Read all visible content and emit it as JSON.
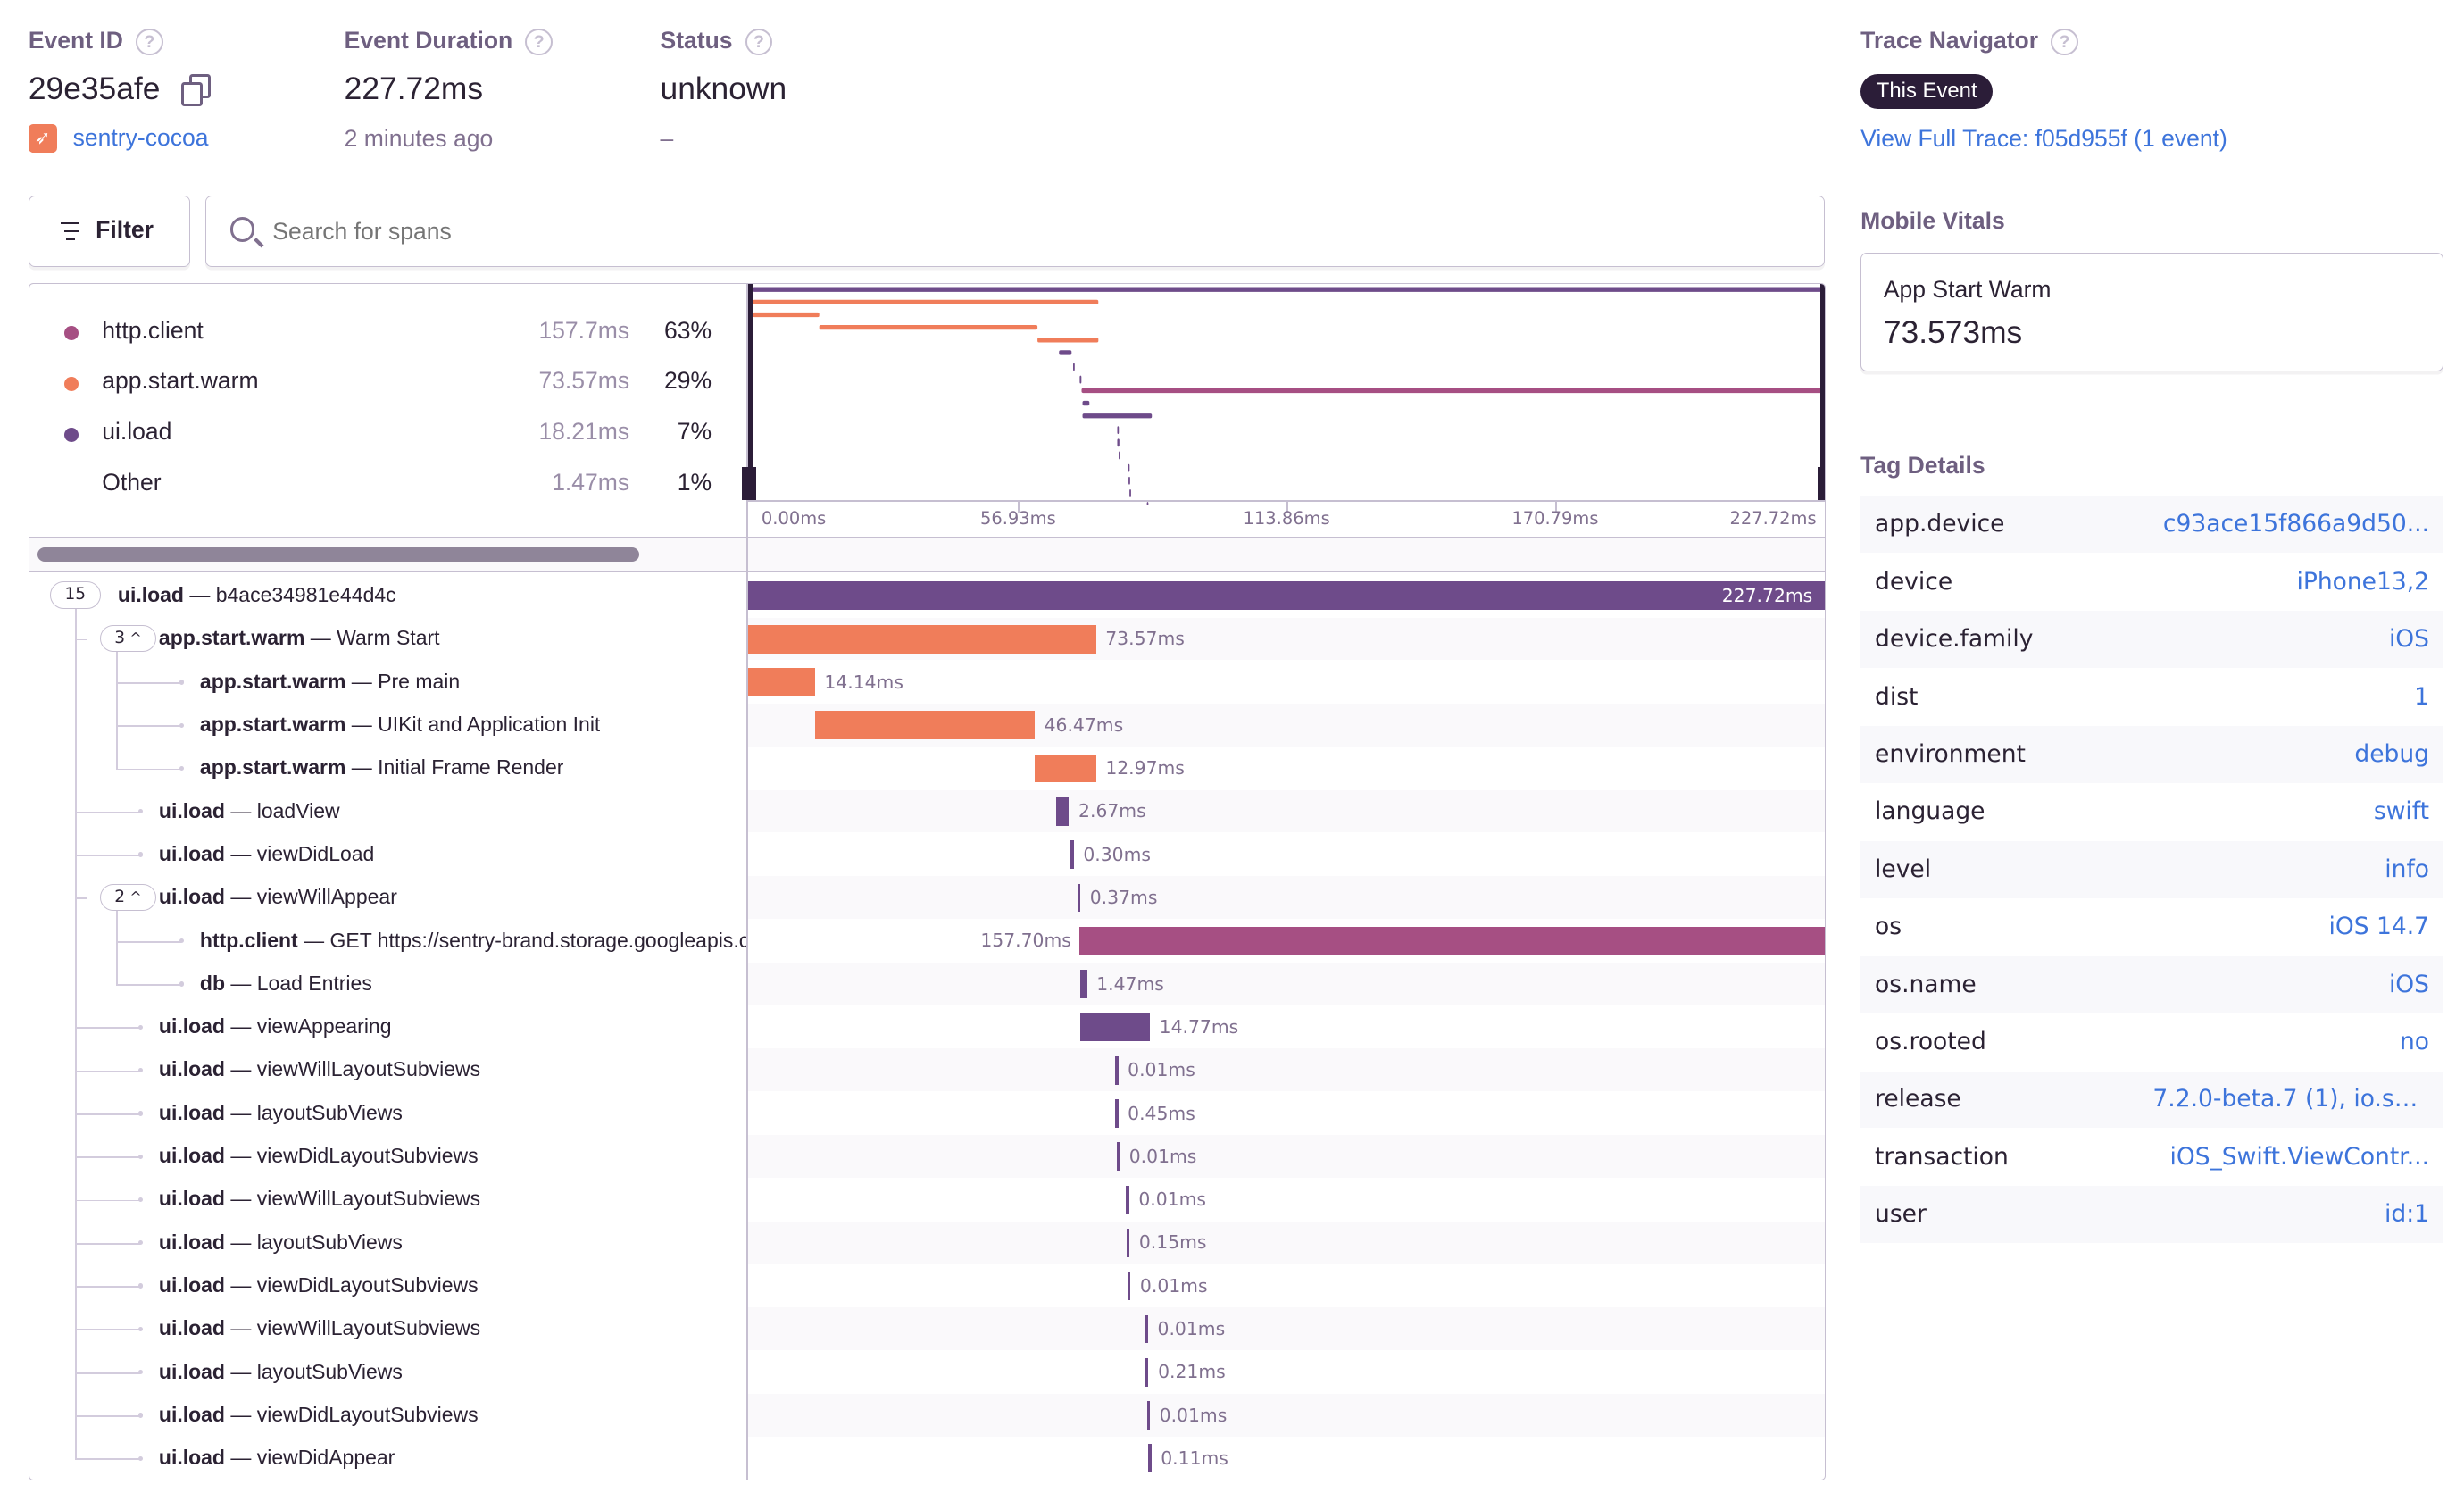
{
  "header": {
    "event_id_label": "Event ID",
    "event_id": "29e35afe",
    "project": "sentry-cocoa",
    "duration_label": "Event Duration",
    "duration": "227.72ms",
    "time_ago": "2 minutes ago",
    "status_label": "Status",
    "status": "unknown",
    "status_sub": "–",
    "help_glyph": "?"
  },
  "trace_navigator": {
    "title": "Trace Navigator",
    "badge": "This Event",
    "link": "View Full Trace: f05d955f (1 event)"
  },
  "toolbar": {
    "filter_label": "Filter",
    "search_placeholder": "Search for spans"
  },
  "legend": [
    {
      "op": "http.client",
      "duration": "157.7ms",
      "percent": "63%",
      "color": "#a64f83"
    },
    {
      "op": "app.start.warm",
      "duration": "73.57ms",
      "percent": "29%",
      "color": "#f07d5a"
    },
    {
      "op": "ui.load",
      "duration": "18.21ms",
      "percent": "7%",
      "color": "#6e4b8a"
    },
    {
      "op": "Other",
      "duration": "1.47ms",
      "percent": "1%",
      "color": ""
    }
  ],
  "axis": {
    "ticks": [
      "0.00ms",
      "56.93ms",
      "113.86ms",
      "170.79ms",
      "227.72ms"
    ],
    "total_ms": 227.72
  },
  "spans": [
    {
      "op": "ui.load",
      "desc": "b4ace34981e44d4c",
      "depth": 0,
      "children": "15",
      "start_ms": 0,
      "duration_ms": 227.72,
      "duration": "227.72ms"
    },
    {
      "op": "app.start.warm",
      "desc": "Warm Start",
      "depth": 1,
      "children": "3",
      "start_ms": 0,
      "duration_ms": 73.57,
      "duration": "73.57ms"
    },
    {
      "op": "app.start.warm",
      "desc": "Pre main",
      "depth": 2,
      "start_ms": 0,
      "duration_ms": 14.14,
      "duration": "14.14ms"
    },
    {
      "op": "app.start.warm",
      "desc": "UIKit and Application Init",
      "depth": 2,
      "start_ms": 14.14,
      "duration_ms": 46.47,
      "duration": "46.47ms"
    },
    {
      "op": "app.start.warm",
      "desc": "Initial Frame Render",
      "depth": 2,
      "start_ms": 60.61,
      "duration_ms": 12.97,
      "duration": "12.97ms"
    },
    {
      "op": "ui.load",
      "desc": "loadView",
      "depth": 1,
      "start_ms": 65.2,
      "duration_ms": 2.67,
      "duration": "2.67ms"
    },
    {
      "op": "ui.load",
      "desc": "viewDidLoad",
      "depth": 1,
      "start_ms": 68.2,
      "duration_ms": 0.3,
      "duration": "0.30ms"
    },
    {
      "op": "ui.load",
      "desc": "viewWillAppear",
      "depth": 1,
      "children": "2",
      "start_ms": 69.6,
      "duration_ms": 0.37,
      "duration": "0.37ms"
    },
    {
      "op": "http.client",
      "desc": "GET https://sentry-brand.storage.googleapis.com",
      "depth": 2,
      "start_ms": 70.0,
      "duration_ms": 157.7,
      "duration": "157.70ms"
    },
    {
      "op": "db",
      "desc": "Load Entries",
      "depth": 2,
      "start_ms": 70.2,
      "duration_ms": 1.47,
      "duration": "1.47ms"
    },
    {
      "op": "ui.load",
      "desc": "viewAppearing",
      "depth": 1,
      "start_ms": 70.2,
      "duration_ms": 14.77,
      "duration": "14.77ms"
    },
    {
      "op": "ui.load",
      "desc": "viewWillLayoutSubviews",
      "depth": 1,
      "start_ms": 77.6,
      "duration_ms": 0.01,
      "duration": "0.01ms"
    },
    {
      "op": "ui.load",
      "desc": "layoutSubViews",
      "depth": 1,
      "start_ms": 77.6,
      "duration_ms": 0.45,
      "duration": "0.45ms"
    },
    {
      "op": "ui.load",
      "desc": "viewDidLayoutSubviews",
      "depth": 1,
      "start_ms": 77.9,
      "duration_ms": 0.01,
      "duration": "0.01ms"
    },
    {
      "op": "ui.load",
      "desc": "viewWillLayoutSubviews",
      "depth": 1,
      "start_ms": 79.9,
      "duration_ms": 0.01,
      "duration": "0.01ms"
    },
    {
      "op": "ui.load",
      "desc": "layoutSubViews",
      "depth": 1,
      "start_ms": 80.0,
      "duration_ms": 0.15,
      "duration": "0.15ms"
    },
    {
      "op": "ui.load",
      "desc": "viewDidLayoutSubviews",
      "depth": 1,
      "start_ms": 80.2,
      "duration_ms": 0.01,
      "duration": "0.01ms"
    },
    {
      "op": "ui.load",
      "desc": "viewWillLayoutSubviews",
      "depth": 1,
      "start_ms": 83.9,
      "duration_ms": 0.01,
      "duration": "0.01ms"
    },
    {
      "op": "ui.load",
      "desc": "layoutSubViews",
      "depth": 1,
      "start_ms": 84.0,
      "duration_ms": 0.21,
      "duration": "0.21ms"
    },
    {
      "op": "ui.load",
      "desc": "viewDidLayoutSubviews",
      "depth": 1,
      "start_ms": 84.3,
      "duration_ms": 0.01,
      "duration": "0.01ms"
    },
    {
      "op": "ui.load",
      "desc": "viewDidAppear",
      "depth": 1,
      "start_ms": 84.6,
      "duration_ms": 0.11,
      "duration": "0.11ms"
    }
  ],
  "op_colors": {
    "ui.load": "#6e4b8a",
    "app.start.warm": "#f07d5a",
    "http.client": "#a64f83",
    "db": "#6e4b8a"
  },
  "mobile_vitals": {
    "title": "Mobile Vitals",
    "card_label": "App Start Warm",
    "card_value": "73.573ms"
  },
  "tag_details": {
    "title": "Tag Details",
    "tags": [
      {
        "key": "app.device",
        "value": "c93ace15f866a9d50..."
      },
      {
        "key": "device",
        "value": "iPhone13,2"
      },
      {
        "key": "device.family",
        "value": "iOS"
      },
      {
        "key": "dist",
        "value": "1"
      },
      {
        "key": "environment",
        "value": "debug"
      },
      {
        "key": "language",
        "value": "swift"
      },
      {
        "key": "level",
        "value": "info"
      },
      {
        "key": "os",
        "value": "iOS 14.7"
      },
      {
        "key": "os.name",
        "value": "iOS"
      },
      {
        "key": "os.rooted",
        "value": "no"
      },
      {
        "key": "release",
        "value": "7.2.0-beta.7 (1), io.se..."
      },
      {
        "key": "transaction",
        "value": "iOS_Swift.ViewContr..."
      },
      {
        "key": "user",
        "value": "id:1"
      }
    ]
  }
}
